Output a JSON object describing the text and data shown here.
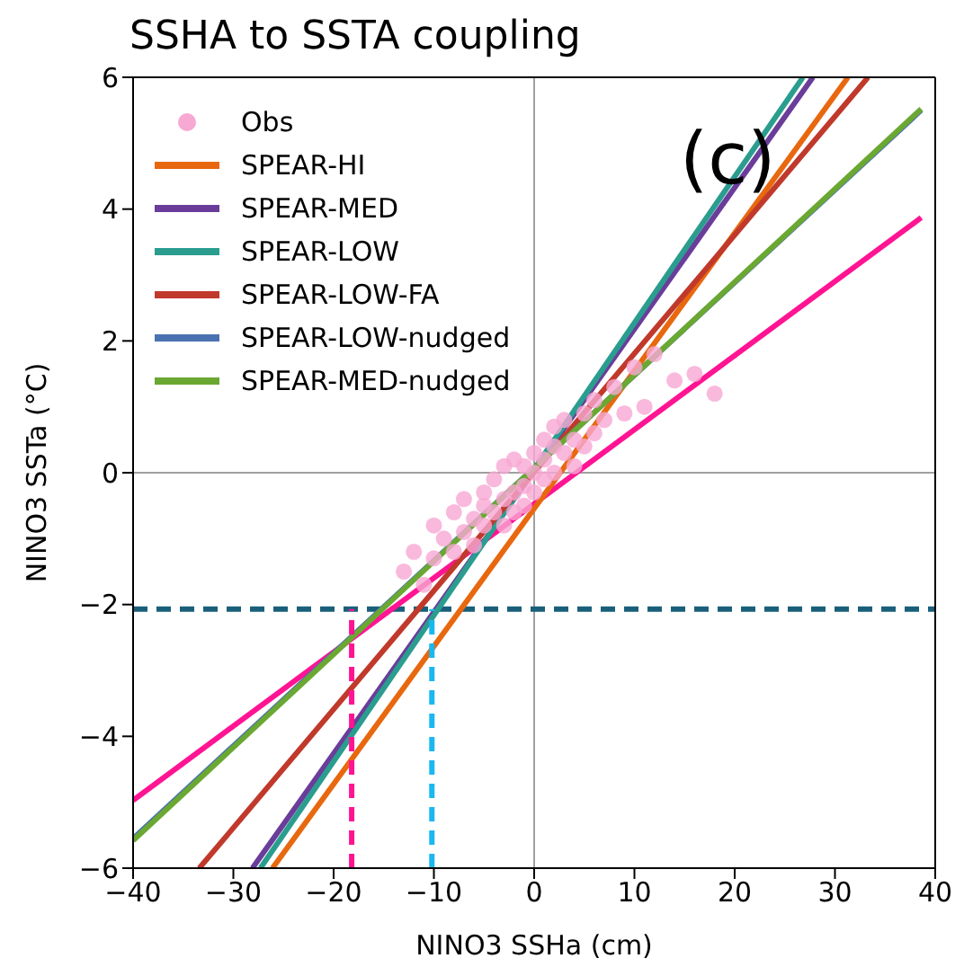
{
  "chart_data": {
    "type": "scatter",
    "title": "SSHA to SSTA coupling",
    "xlabel": "NINO3 SSHa (cm)",
    "ylabel": "NINO3 SSTa (°C)",
    "annotations": [
      "(c)"
    ],
    "xlim": [
      -40,
      40
    ],
    "xticks": [
      -40,
      -30,
      -20,
      -10,
      0,
      10,
      20,
      30,
      40
    ],
    "ylim": [
      -6,
      6
    ],
    "yticks": [
      -6,
      -4,
      -2,
      0,
      2,
      4,
      6
    ],
    "grid": false,
    "legend": "top left",
    "ref_lines": [
      {
        "axis": "x",
        "value": 0,
        "color": "#a0a0a0",
        "line_style": "solid"
      },
      {
        "axis": "y",
        "value": 0,
        "color": "#a0a0a0",
        "line_style": "solid"
      },
      {
        "axis": "y",
        "value": -2.07,
        "color": "#1a5f7a",
        "line_style": "dashed"
      }
    ],
    "series": [
      {
        "name": "Obs",
        "marker": "circle",
        "color": "#f7a8d3",
        "x": [
          -13,
          -12,
          -11,
          -10,
          -10,
          -9,
          -8,
          -8,
          -7,
          -7,
          -6,
          -6,
          -5,
          -5,
          -5,
          -4,
          -4,
          -3,
          -3,
          -3,
          -2,
          -2,
          -2,
          -1,
          -1,
          -1,
          0,
          0,
          0,
          1,
          1,
          1,
          2,
          2,
          2,
          3,
          3,
          4,
          4,
          5,
          5,
          6,
          6,
          7,
          8,
          9,
          10,
          11,
          12,
          14,
          16,
          18
        ],
        "values": [
          -1.5,
          -1.2,
          -1.7,
          -0.8,
          -1.3,
          -1.0,
          -0.6,
          -1.2,
          -0.9,
          -0.4,
          -0.7,
          -1.1,
          -0.3,
          -0.8,
          -0.5,
          -0.6,
          -0.1,
          -0.4,
          0.1,
          -0.8,
          -0.3,
          0.2,
          -0.6,
          0.1,
          -0.2,
          -0.5,
          0.0,
          0.3,
          -0.3,
          0.2,
          0.5,
          -0.1,
          0.4,
          0.0,
          0.7,
          0.3,
          0.8,
          0.5,
          0.1,
          0.9,
          0.4,
          0.6,
          1.1,
          0.8,
          1.3,
          0.9,
          1.6,
          1.0,
          1.8,
          1.4,
          1.5,
          1.2
        ]
      },
      {
        "type": "line",
        "marker": "none",
        "color": "#ff1493",
        "x": [
          -40,
          38.6
        ],
        "values": [
          -4.97,
          3.87
        ]
      },
      {
        "name": "SPEAR-HI",
        "type": "line",
        "marker": "none",
        "color": "#e8680f",
        "x": [
          -26.1,
          31.3
        ],
        "values": [
          -6,
          6
        ]
      },
      {
        "name": "SPEAR-MED",
        "type": "line",
        "marker": "none",
        "color": "#6a3d9a",
        "x": [
          -28.1,
          27.8
        ],
        "values": [
          -6,
          6
        ]
      },
      {
        "name": "SPEAR-LOW",
        "type": "line",
        "marker": "none",
        "color": "#2a9d8f",
        "x": [
          -27.3,
          26.8
        ],
        "values": [
          -6,
          6
        ]
      },
      {
        "name": "SPEAR-LOW-FA",
        "type": "line",
        "marker": "none",
        "color": "#c0392b",
        "x": [
          -33.4,
          33.3
        ],
        "values": [
          -6,
          6
        ]
      },
      {
        "name": "SPEAR-LOW-nudged",
        "type": "line",
        "marker": "none",
        "color": "#4a72b0",
        "x": [
          -40,
          38.6
        ],
        "values": [
          -5.55,
          5.5
        ]
      },
      {
        "name": "SPEAR-MED-nudged",
        "type": "line",
        "marker": "none",
        "color": "#6aa832",
        "x": [
          -40,
          38.6
        ],
        "values": [
          -5.58,
          5.52
        ]
      },
      {
        "type": "line",
        "marker": "none",
        "line_style": "dashed",
        "color": "#ff1493",
        "x": [
          -18.2,
          -18.2
        ],
        "values": [
          -6,
          -2.07
        ]
      },
      {
        "type": "line",
        "marker": "none",
        "line_style": "dashed",
        "color": "#1ab8f0",
        "x": [
          -10.2,
          -10.2
        ],
        "values": [
          -6,
          -2.07
        ]
      }
    ]
  }
}
